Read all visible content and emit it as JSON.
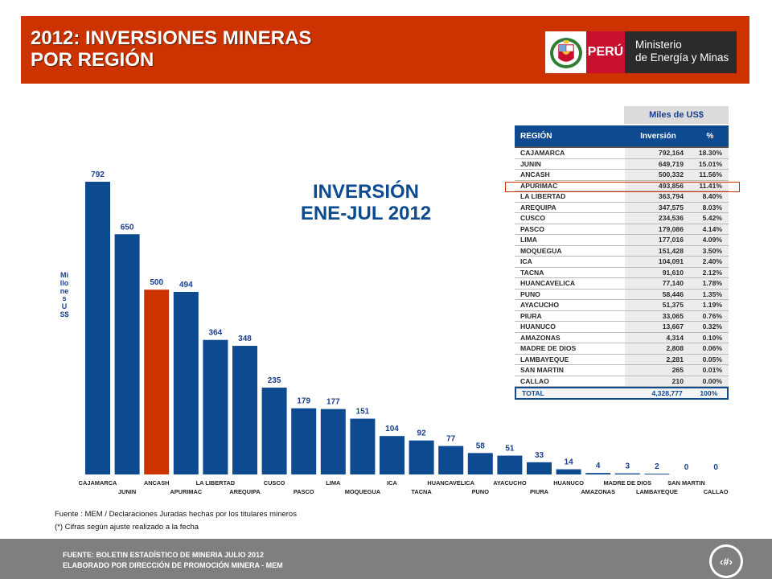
{
  "header": {
    "title_line1": "2012: INVERSIONES MINERAS",
    "title_line2": "POR REGIÓN",
    "logo_country": "PERÚ",
    "logo_ministry_line1": "Ministerio",
    "logo_ministry_line2": "de Energía y Minas"
  },
  "chart_title": {
    "line1": "INVERSIÓN",
    "line2": "ENE-JUL 2012"
  },
  "chart_data": {
    "type": "bar",
    "ylabel": "Millones US$",
    "categories": [
      "CAJAMARCA",
      "JUNIN",
      "ANCASH",
      "APURIMAC",
      "LA LIBERTAD",
      "AREQUIPA",
      "CUSCO",
      "PASCO",
      "LIMA",
      "MOQUEGUA",
      "ICA",
      "TACNA",
      "HUANCAVELICA",
      "PUNO",
      "AYACUCHO",
      "PIURA",
      "HUANUCO",
      "AMAZONAS",
      "MADRE DE DIOS",
      "LAMBAYEQUE",
      "SAN MARTIN",
      "CALLAO"
    ],
    "values": [
      792,
      650,
      500,
      494,
      364,
      348,
      235,
      179,
      177,
      151,
      104,
      92,
      77,
      58,
      51,
      33,
      14,
      4,
      3,
      2,
      0,
      0
    ],
    "highlight_category": "ANCASH",
    "colors": {
      "bar": "#0e4a8f",
      "highlight": "#cc3300",
      "label": "#1a3f8f"
    }
  },
  "table": {
    "unit": "Miles de US$",
    "headers": [
      "REGIÓN",
      "Inversión",
      "%"
    ],
    "rows": [
      [
        "CAJAMARCA",
        "792,164",
        "18.30%"
      ],
      [
        "JUNIN",
        "649,719",
        "15.01%"
      ],
      [
        "ANCASH",
        "500,332",
        "11.56%"
      ],
      [
        "APURIMAC",
        "493,856",
        "11.41%"
      ],
      [
        "LA LIBERTAD",
        "363,794",
        "8.40%"
      ],
      [
        "AREQUIPA",
        "347,575",
        "8.03%"
      ],
      [
        "CUSCO",
        "234,536",
        "5.42%"
      ],
      [
        "PASCO",
        "179,086",
        "4.14%"
      ],
      [
        "LIMA",
        "177,016",
        "4.09%"
      ],
      [
        "MOQUEGUA",
        "151,428",
        "3.50%"
      ],
      [
        "ICA",
        "104,091",
        "2.40%"
      ],
      [
        "TACNA",
        "91,610",
        "2.12%"
      ],
      [
        "HUANCAVELICA",
        "77,140",
        "1.78%"
      ],
      [
        "PUNO",
        "58,446",
        "1.35%"
      ],
      [
        "AYACUCHO",
        "51,375",
        "1.19%"
      ],
      [
        "PIURA",
        "33,065",
        "0.76%"
      ],
      [
        "HUANUCO",
        "13,667",
        "0.32%"
      ],
      [
        "AMAZONAS",
        "4,314",
        "0.10%"
      ],
      [
        "MADRE DE DIOS",
        "2,808",
        "0.06%"
      ],
      [
        "LAMBAYEQUE",
        "2,281",
        "0.05%"
      ],
      [
        "SAN MARTIN",
        "265",
        "0.01%"
      ],
      [
        "CALLAO",
        "210",
        "0.00%"
      ]
    ],
    "total": [
      "TOTAL",
      "4,328,777",
      "100%"
    ],
    "highlight_row": "APURIMAC"
  },
  "source_line1": "Fuente : MEM / Declaraciones Juradas hechas por los titulares mineros",
  "source_line2": "(*) Cifras según ajuste realizado a la fecha",
  "footer": {
    "line1": "FUENTE: BOLETIN ESTADÍSTICO DE MINERIA JULIO 2012",
    "line2": "ELABORADO POR DIRECCIÓN DE PROMOCIÓN MINERA  - MEM",
    "page_number": "‹#›"
  }
}
